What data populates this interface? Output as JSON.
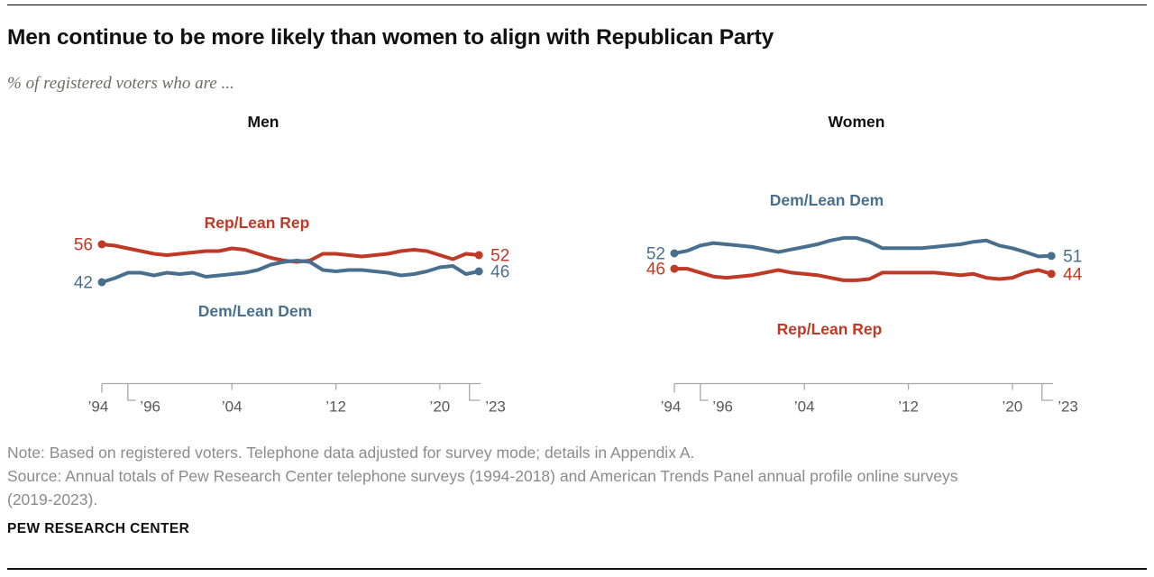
{
  "header": {
    "title": "Men continue to be more likely than women to align with Republican Party",
    "subtitle": "% of registered voters who are ..."
  },
  "colors": {
    "rep": "#bf3927",
    "dem": "#48708e",
    "axis": "#a8a8a8",
    "tick_label": "#58585a"
  },
  "chart_data": [
    {
      "type": "line",
      "title": "Men",
      "x": [
        1994,
        1995,
        1996,
        1997,
        1998,
        1999,
        2000,
        2001,
        2002,
        2003,
        2004,
        2005,
        2006,
        2007,
        2008,
        2009,
        2010,
        2011,
        2012,
        2013,
        2014,
        2015,
        2016,
        2017,
        2018,
        2019,
        2020,
        2021,
        2022,
        2023
      ],
      "series": [
        {
          "name": "Rep/Lean Rep",
          "color_key": "rep",
          "values": [
            56,
            55.5,
            54.5,
            53.5,
            52.5,
            52,
            52.5,
            53,
            53.5,
            53.5,
            54.5,
            54,
            52.5,
            51,
            50,
            49.5,
            50,
            52.5,
            52.5,
            52,
            51.5,
            52,
            52.5,
            53.5,
            54,
            53.5,
            52,
            50.5,
            52.5,
            52
          ],
          "start_label": "56",
          "end_label": "52"
        },
        {
          "name": "Dem/Lean Dem",
          "color_key": "dem",
          "values": [
            42,
            43.5,
            45.5,
            45.5,
            44.5,
            45.5,
            45,
            45.5,
            44,
            44.5,
            45,
            45.5,
            46.5,
            48.5,
            49.5,
            50,
            49.5,
            46.5,
            46,
            46.5,
            46.5,
            46,
            45.5,
            44.5,
            45,
            46,
            47.5,
            48,
            45,
            46
          ],
          "start_label": "42",
          "end_label": "46"
        }
      ],
      "ticks": [
        {
          "label": "’94",
          "year": 1994,
          "offset": false
        },
        {
          "label": "’96",
          "year": 1996,
          "offset": true
        },
        {
          "label": "’04",
          "year": 2004,
          "offset": false
        },
        {
          "label": "’12",
          "year": 2012,
          "offset": false
        },
        {
          "label": "’20",
          "year": 2020,
          "offset": false
        },
        {
          "label": "’23",
          "year": 2023,
          "offset": true
        }
      ],
      "x_range": [
        1994,
        2023
      ],
      "grid": false,
      "legend_position": "inline"
    },
    {
      "type": "line",
      "title": "Women",
      "x": [
        1994,
        1995,
        1996,
        1997,
        1998,
        1999,
        2000,
        2001,
        2002,
        2003,
        2004,
        2005,
        2006,
        2007,
        2008,
        2009,
        2010,
        2011,
        2012,
        2013,
        2014,
        2015,
        2016,
        2017,
        2018,
        2019,
        2020,
        2021,
        2022,
        2023
      ],
      "series": [
        {
          "name": "Dem/Lean Dem",
          "color_key": "dem",
          "values": [
            52,
            53,
            55,
            56,
            55.5,
            55,
            54.5,
            53.5,
            52.5,
            53.5,
            54.5,
            55.5,
            57,
            58,
            58,
            56.5,
            54,
            54,
            54,
            54,
            54.5,
            55,
            55.5,
            56.5,
            57,
            55,
            54,
            52.5,
            50.8,
            51
          ],
          "start_label": "52",
          "end_label": "51"
        },
        {
          "name": "Rep/Lean Rep",
          "color_key": "rep",
          "values": [
            46,
            46,
            44.5,
            43,
            42.5,
            43,
            43.5,
            44.5,
            45.5,
            44.5,
            44,
            43.5,
            42.5,
            41.5,
            41.5,
            42,
            44.5,
            44.5,
            44.5,
            44.5,
            44.5,
            44,
            43.5,
            44,
            42.5,
            42,
            42.5,
            44.5,
            45.5,
            44
          ],
          "start_label": "46",
          "end_label": "44"
        }
      ],
      "ticks": [
        {
          "label": "’94",
          "year": 1994,
          "offset": false
        },
        {
          "label": "’96",
          "year": 1996,
          "offset": true
        },
        {
          "label": "’04",
          "year": 2004,
          "offset": false
        },
        {
          "label": "’12",
          "year": 2012,
          "offset": false
        },
        {
          "label": "’20",
          "year": 2020,
          "offset": false
        },
        {
          "label": "’23",
          "year": 2023,
          "offset": true
        }
      ],
      "x_range": [
        1994,
        2023
      ],
      "grid": false,
      "legend_position": "inline"
    }
  ],
  "footer": {
    "note": "Note: Based on registered voters. Telephone data adjusted for survey mode; details in Appendix A.",
    "source": "Source: Annual totals of Pew Research Center telephone surveys (1994-2018) and American Trends Panel annual profile online surveys (2019-2023).",
    "brand": "PEW RESEARCH CENTER"
  }
}
